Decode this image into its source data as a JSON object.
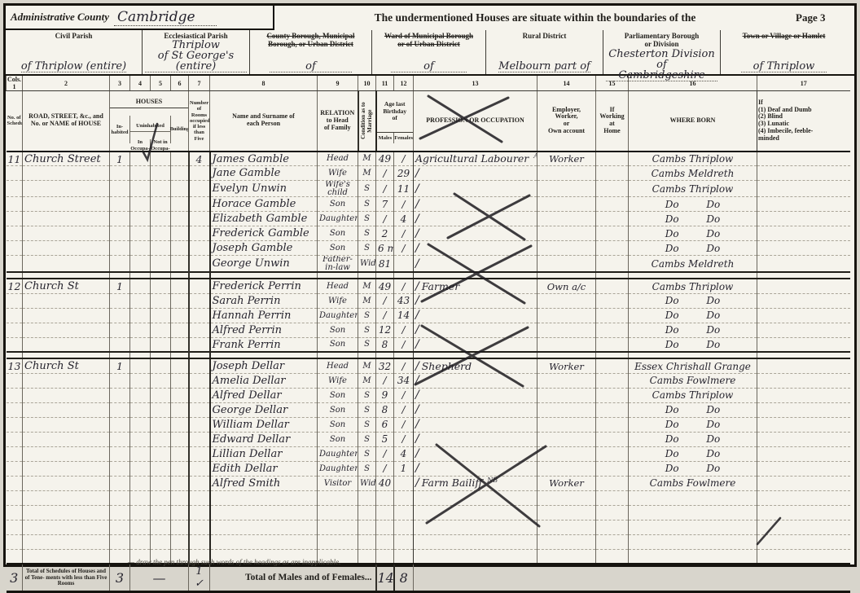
{
  "page": {
    "admin_county_label": "Administrative County",
    "admin_county_value": "Cambridge",
    "statement": "The undermentioned Houses are situate within the boundaries of the",
    "page_number": "Page 3"
  },
  "districts": [
    {
      "label": "Civil Parish",
      "struck": false,
      "value": "of Thriplow (entire)"
    },
    {
      "label": "Ecclesiastical Parish",
      "struck": false,
      "value": "Thriplow\nof St George's (entire)"
    },
    {
      "label": "County Borough, Municipal\nBorough, or Urban District",
      "struck": true,
      "value": "of"
    },
    {
      "label": "Ward of Municipal Borough\nor of Urban District",
      "struck": true,
      "value": "of"
    },
    {
      "label": "Rural District",
      "struck": false,
      "value": "Melbourn part of"
    },
    {
      "label": "Parliamentary Borough\nor Division",
      "struck": false,
      "value": "Chesterton Division of\nCambridgeshire"
    },
    {
      "label": "Town or Village or Hamlet",
      "struck": true,
      "value": "of Thriplow"
    }
  ],
  "table": {
    "col_numbers": [
      "Cols. 1",
      "2",
      "3",
      "4",
      "5",
      "6",
      "7",
      "8",
      "9",
      "10",
      "11",
      "12",
      "13",
      "14",
      "15",
      "16",
      "17"
    ],
    "headers": {
      "col1": "No. of Schedule",
      "col2": "ROAD, STREET, &c., and\nNo. or NAME of HOUSE",
      "houses": "HOUSES",
      "inhabited": "In-\nhabited",
      "uninhabited": "Uninhabited",
      "in_occupation": "In\nOccupa-\ntion",
      "not_in_occupation": "Not in\nOccupa-\ntion",
      "building": "Building",
      "col7": "Number of Rooms occupied if less than Five",
      "col8": "Name and Surname of\neach Person",
      "col9": "RELATION\nto Head\nof Family",
      "col10": "Condition as to Marriage",
      "age": "Age last\nBirthday\nof",
      "males": "Males",
      "females": "Females",
      "col13": "PROFESSION OR OCCUPATION",
      "col14": "Employer,\nWorker,\nor\nOwn account",
      "col15": "If\nWorking\nat\nHome",
      "col16": "WHERE BORN",
      "col17": "If\n(1) Deaf and Dumb\n(2) Blind\n(3) Lunatic\n(4) Imbecile, feeble-\nminded"
    },
    "rows": [
      {
        "type": "person",
        "schedule": "11",
        "road": "Church Street",
        "inhabited": "1",
        "rooms": "4",
        "name": "James Gamble",
        "relation": "Head",
        "condition": "M",
        "age_m": "49",
        "age_f": "/",
        "occupation": "Agricultural Labourer",
        "occupation_note": "Agl",
        "employer": "Worker",
        "born": "Cambs Thriplow",
        "tick": false
      },
      {
        "type": "person",
        "name": "Jane Gamble",
        "relation": "Wife",
        "condition": "M",
        "age_m": "/",
        "age_f": "29",
        "tick": true,
        "born": "Cambs Meldreth"
      },
      {
        "type": "person",
        "name": "Evelyn Unwin",
        "relation": "Wife's child",
        "condition": "S",
        "age_m": "/",
        "age_f": "11",
        "tick": true,
        "born": "Cambs Thriplow"
      },
      {
        "type": "person",
        "name": "Horace Gamble",
        "relation": "Son",
        "condition": "S",
        "age_m": "7",
        "age_f": "/",
        "tick": true,
        "born": "Do Do"
      },
      {
        "type": "person",
        "name": "Elizabeth Gamble",
        "relation": "Daughter",
        "condition": "S",
        "age_m": "/",
        "age_f": "4",
        "tick": true,
        "born": "Do Do"
      },
      {
        "type": "person",
        "name": "Frederick Gamble",
        "relation": "Son",
        "condition": "S",
        "age_m": "2",
        "age_f": "/",
        "tick": true,
        "born": "Do Do"
      },
      {
        "type": "person",
        "name": "Joseph Gamble",
        "relation": "Son",
        "condition": "S",
        "age_m": "6 mo",
        "age_f": "/",
        "tick": true,
        "born": "Do Do"
      },
      {
        "type": "person",
        "name": "George Unwin",
        "relation": "Father-in-law",
        "condition": "Widr",
        "age_m": "81",
        "age_f": "",
        "tick": true,
        "born": "Cambs Meldreth"
      },
      {
        "type": "sep"
      },
      {
        "type": "person",
        "schedule": "12",
        "road": "Church St",
        "inhabited": "1",
        "name": "Frederick Perrin",
        "relation": "Head",
        "condition": "M",
        "age_m": "49",
        "age_f": "/",
        "occupation": "Farmer",
        "employer": "Own a/c",
        "born": "Cambs Thriplow",
        "tick": true
      },
      {
        "type": "person",
        "name": "Sarah Perrin",
        "relation": "Wife",
        "condition": "M",
        "age_m": "/",
        "age_f": "43",
        "tick": true,
        "born": "Do Do"
      },
      {
        "type": "person",
        "name": "Hannah Perrin",
        "relation": "Daughter",
        "condition": "S",
        "age_m": "/",
        "age_f": "14",
        "tick": true,
        "born": "Do Do"
      },
      {
        "type": "person",
        "name": "Alfred Perrin",
        "relation": "Son",
        "condition": "S",
        "age_m": "12",
        "age_f": "/",
        "tick": true,
        "born": "Do Do"
      },
      {
        "type": "person",
        "name": "Frank Perrin",
        "relation": "Son",
        "condition": "S",
        "age_m": "8",
        "age_f": "/",
        "tick": true,
        "born": "Do Do"
      },
      {
        "type": "sep"
      },
      {
        "type": "person",
        "schedule": "13",
        "road": "Church St",
        "inhabited": "1",
        "name": "Joseph Dellar",
        "relation": "Head",
        "condition": "M",
        "age_m": "32",
        "age_f": "/",
        "occupation": "Shepherd",
        "employer": "Worker",
        "born": "Essex Chrishall Grange",
        "tick": true
      },
      {
        "type": "person",
        "name": "Amelia Dellar",
        "relation": "Wife",
        "condition": "M",
        "age_m": "/",
        "age_f": "34",
        "tick": true,
        "born": "Cambs Fowlmere"
      },
      {
        "type": "person",
        "name": "Alfred Dellar",
        "relation": "Son",
        "condition": "S",
        "age_m": "9",
        "age_f": "/",
        "tick": true,
        "born": "Cambs Thriplow"
      },
      {
        "type": "person",
        "name": "George Dellar",
        "relation": "Son",
        "condition": "S",
        "age_m": "8",
        "age_f": "/",
        "tick": true,
        "born": "Do Do"
      },
      {
        "type": "person",
        "name": "William Dellar",
        "relation": "Son",
        "condition": "S",
        "age_m": "6",
        "age_f": "/",
        "tick": true,
        "born": "Do Do"
      },
      {
        "type": "person",
        "name": "Edward Dellar",
        "relation": "Son",
        "condition": "S",
        "age_m": "5",
        "age_f": "/",
        "tick": true,
        "born": "Do Do"
      },
      {
        "type": "person",
        "name": "Lillian Dellar",
        "relation": "Daughter",
        "condition": "S",
        "age_m": "/",
        "age_f": "4",
        "tick": true,
        "born": "Do Do"
      },
      {
        "type": "person",
        "name": "Edith Dellar",
        "relation": "Daughter",
        "condition": "S",
        "age_m": "/",
        "age_f": "1",
        "tick": true,
        "born": "Do Do"
      },
      {
        "type": "person",
        "name": "Alfred Smith",
        "relation": "Visitor",
        "condition": "Widr",
        "age_m": "40",
        "age_f": "",
        "occupation": "Farm Bailiff",
        "occupation_note": "NB",
        "employer": "Worker",
        "born": "Cambs Fowlmere",
        "tick": true
      },
      {
        "type": "blank"
      },
      {
        "type": "blank"
      },
      {
        "type": "blank"
      },
      {
        "type": "blank"
      },
      {
        "type": "blank"
      }
    ],
    "totals": {
      "schedules": "3",
      "left_label": "Total of Schedules of Houses and of Tene- ments with less than Five Rooms",
      "inhabited": "3",
      "uninhabited_dash": "—",
      "rooms": "1 ✓",
      "right_label": "Total of Males and of Females...",
      "males": "14",
      "females": "8"
    }
  },
  "footer_note": "— draw the pen through such words of the headings as are inapplicable."
}
